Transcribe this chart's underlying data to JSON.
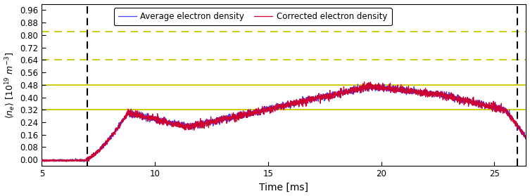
{
  "x_min": 5,
  "x_max": 26.4,
  "y_min": -0.04,
  "y_max": 1.0,
  "yticks": [
    0.0,
    0.08,
    0.16,
    0.24,
    0.32,
    0.4,
    0.48,
    0.56,
    0.64,
    0.72,
    0.8,
    0.88,
    0.96
  ],
  "xticks": [
    5,
    10,
    15,
    20,
    25
  ],
  "xlabel": "Time [ms]",
  "ylabel": "$\\langle n_e \\rangle\\ [10^{19}\\ m^{-3}]$",
  "vline1_x": 7.0,
  "vline2_x": 26.0,
  "hlines_solid": [
    0.32,
    0.48
  ],
  "hlines_dashed": [
    0.64,
    0.82
  ],
  "hline_color": "#c8c800",
  "legend_labels": [
    "Average electron density",
    "Corrected electron density"
  ],
  "avg_color": "#4444ff",
  "corr_color": "#cc0033",
  "bg_color": "#ffffff",
  "figsize": [
    7.53,
    2.79
  ],
  "dpi": 100
}
